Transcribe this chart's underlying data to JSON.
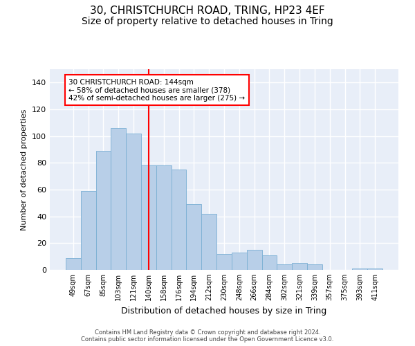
{
  "title1": "30, CHRISTCHURCH ROAD, TRING, HP23 4EF",
  "title2": "Size of property relative to detached houses in Tring",
  "xlabel": "Distribution of detached houses by size in Tring",
  "ylabel": "Number of detached properties",
  "categories": [
    "49sqm",
    "67sqm",
    "85sqm",
    "103sqm",
    "121sqm",
    "140sqm",
    "158sqm",
    "176sqm",
    "194sqm",
    "212sqm",
    "230sqm",
    "248sqm",
    "266sqm",
    "284sqm",
    "302sqm",
    "321sqm",
    "339sqm",
    "357sqm",
    "375sqm",
    "393sqm",
    "411sqm"
  ],
  "values": [
    9,
    59,
    89,
    106,
    102,
    78,
    78,
    75,
    49,
    42,
    12,
    13,
    15,
    11,
    4,
    5,
    4,
    0,
    0,
    1,
    1
  ],
  "bar_color": "#b8cfe8",
  "bar_edgecolor": "#7aafd4",
  "redline_index": 5,
  "redline_label": "30 CHRISTCHURCH ROAD: 144sqm",
  "annotation_line1": "← 58% of detached houses are smaller (378)",
  "annotation_line2": "42% of semi-detached houses are larger (275) →",
  "ylim": [
    0,
    150
  ],
  "yticks": [
    0,
    20,
    40,
    60,
    80,
    100,
    120,
    140
  ],
  "footer1": "Contains HM Land Registry data © Crown copyright and database right 2024.",
  "footer2": "Contains public sector information licensed under the Open Government Licence v3.0.",
  "plot_bg_color": "#e8eef8",
  "title_fontsize": 11,
  "subtitle_fontsize": 10
}
